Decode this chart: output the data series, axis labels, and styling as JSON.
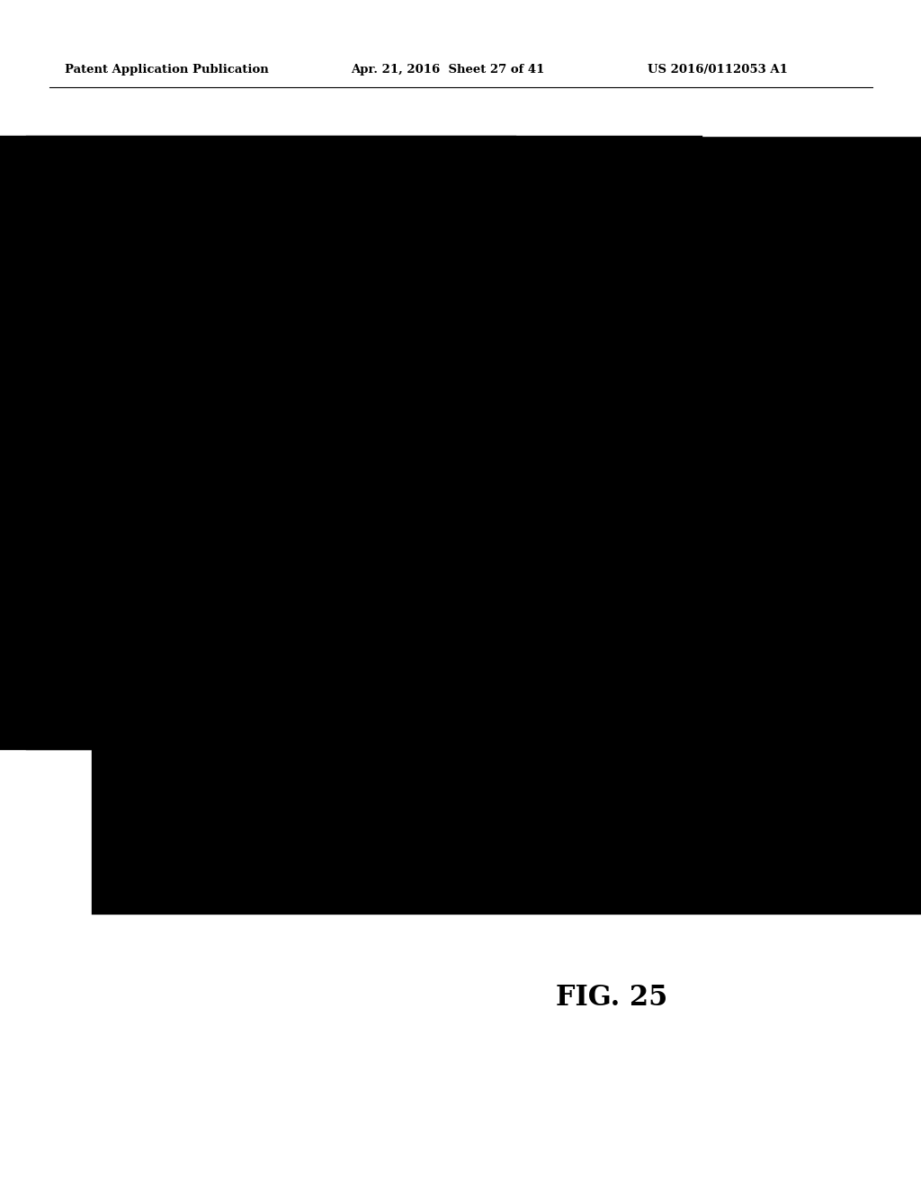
{
  "title_left": "Patent Application Publication",
  "title_center": "Apr. 21, 2016  Sheet 27 of 41",
  "title_right": "US 2016/0112053 A1",
  "fig_label": "FIG. 25",
  "background_color": "#ffffff",
  "text_color": "#000000"
}
